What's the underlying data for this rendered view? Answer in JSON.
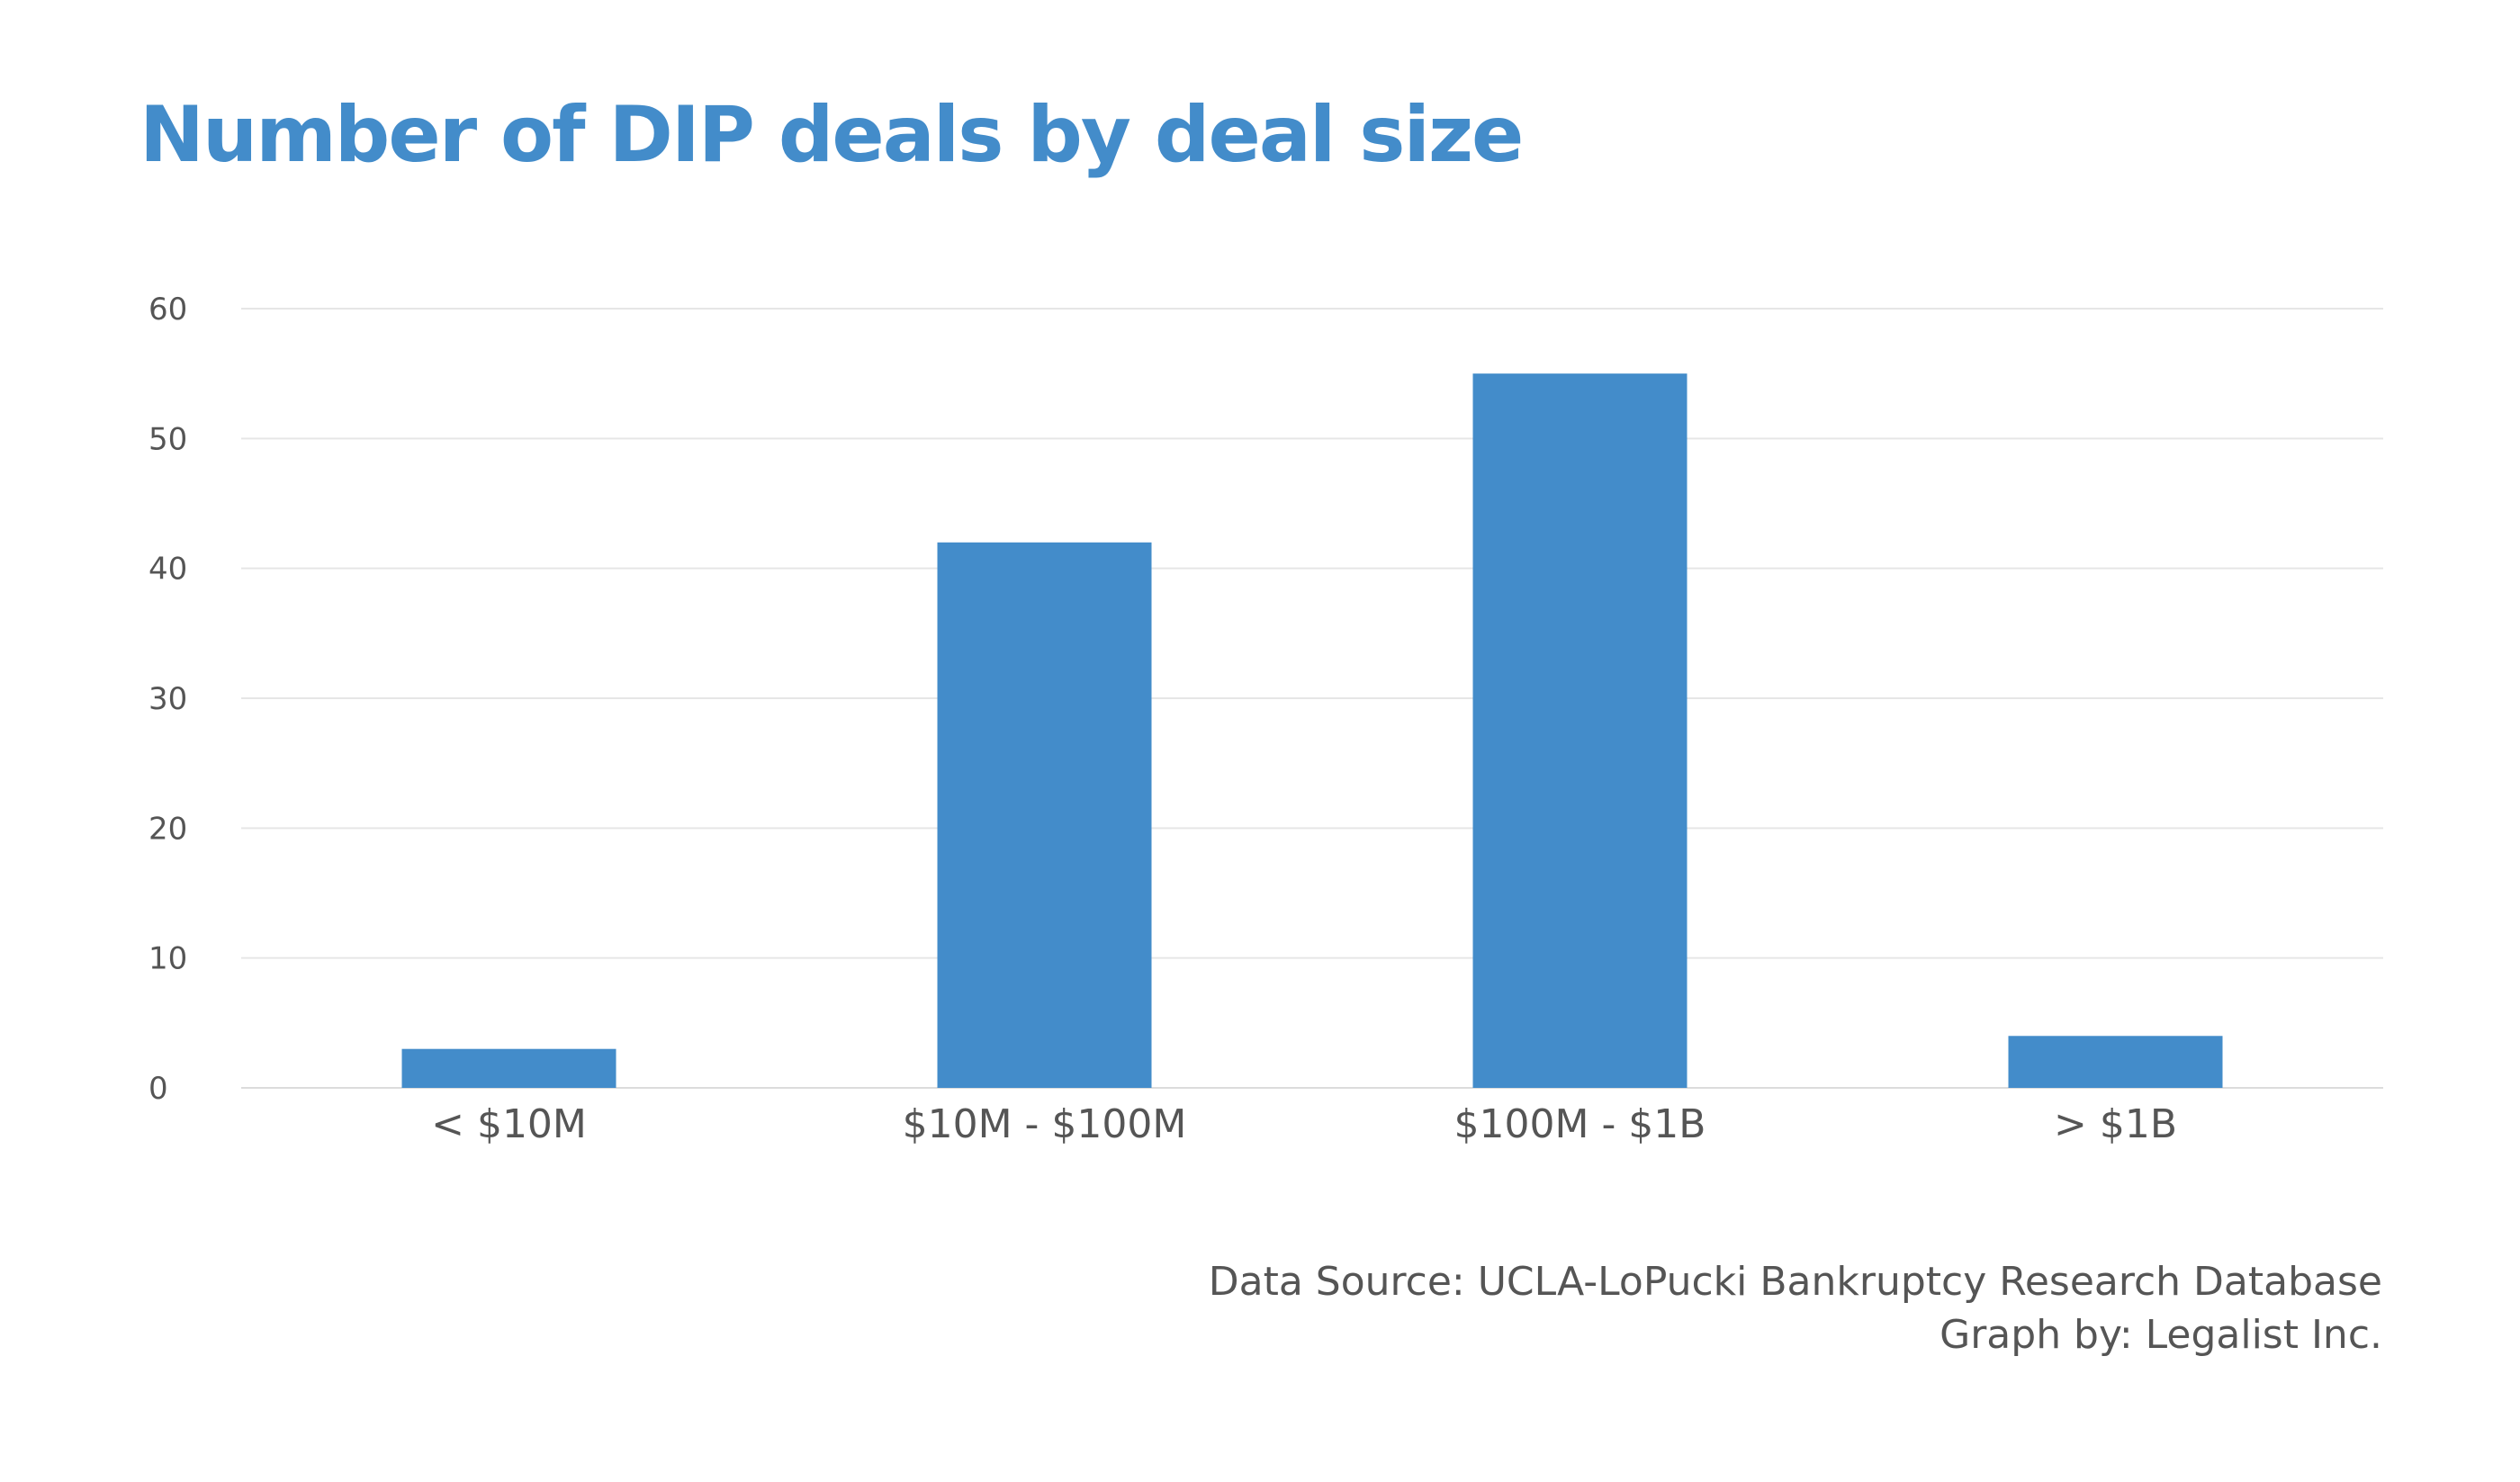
{
  "chart_data": {
    "type": "bar",
    "title": "Number of DIP deals by deal size",
    "categories": [
      "< $10M",
      "$10M - $100M",
      "$100M - $1B",
      "> $1B"
    ],
    "values": [
      3,
      42,
      55,
      4
    ],
    "xlabel": "",
    "ylabel": "",
    "ylim": [
      0,
      60
    ],
    "yticks": [
      0,
      10,
      20,
      30,
      40,
      50,
      60
    ],
    "yticks_labels": [
      "0",
      "10",
      "20",
      "30",
      "40",
      "50",
      "60"
    ],
    "grid": true,
    "legend": "none",
    "bar_color": "#438cca",
    "title_color": "#438cca",
    "text_color": "#555555"
  },
  "footer": {
    "source": "Data Source: UCLA-LoPucki Bankruptcy Research Database",
    "credit": "Graph by: Legalist Inc."
  }
}
